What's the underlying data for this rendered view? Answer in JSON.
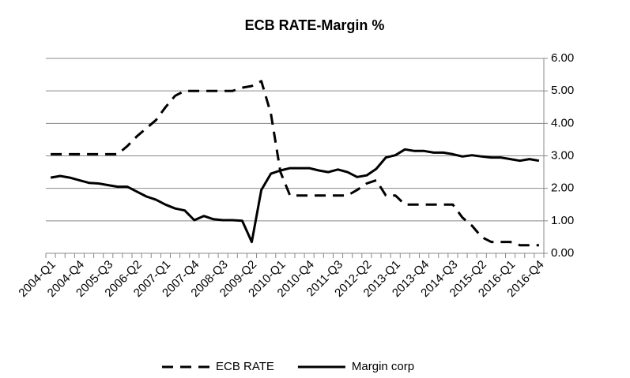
{
  "chart_data": {
    "type": "line",
    "title": "ECB RATE-Margin %",
    "categories": [
      "2004-Q1",
      null,
      null,
      "2004-Q4",
      null,
      null,
      "2005-Q3",
      null,
      null,
      "2006-Q2",
      null,
      null,
      "2007-Q1",
      null,
      null,
      "2007-Q4",
      null,
      null,
      "2008-Q3",
      null,
      null,
      "2009-Q2",
      null,
      null,
      "2010-Q1",
      null,
      null,
      "2010-Q4",
      null,
      null,
      "2011-Q3",
      null,
      null,
      "2012-Q2",
      null,
      null,
      "2013-Q1",
      null,
      null,
      "2013-Q4",
      null,
      null,
      "2014-Q3",
      null,
      null,
      "2015-Q2",
      null,
      null,
      "2016-Q1",
      null,
      null,
      "2016-Q4"
    ],
    "series": [
      {
        "name": "ECB RATE",
        "color": "#000000",
        "dashed": true,
        "values": [
          3.05,
          3.05,
          3.05,
          3.05,
          3.05,
          3.05,
          3.05,
          3.05,
          3.3,
          3.6,
          3.85,
          4.1,
          4.5,
          4.85,
          5.0,
          5.0,
          5.0,
          5.0,
          5.0,
          5.0,
          5.1,
          5.15,
          5.3,
          4.3,
          2.5,
          1.78,
          1.78,
          1.78,
          1.78,
          1.78,
          1.78,
          1.78,
          1.95,
          2.15,
          2.25,
          1.78,
          1.78,
          1.5,
          1.5,
          1.5,
          1.5,
          1.5,
          1.5,
          1.1,
          0.85,
          0.5,
          0.35,
          0.35,
          0.35,
          0.25,
          0.25,
          0.25
        ]
      },
      {
        "name": "Margin corp",
        "color": "#000000",
        "dashed": false,
        "values": [
          2.33,
          2.38,
          2.33,
          2.25,
          2.17,
          2.15,
          2.1,
          2.05,
          2.05,
          1.9,
          1.75,
          1.65,
          1.5,
          1.38,
          1.32,
          1.02,
          1.15,
          1.05,
          1.02,
          1.02,
          1.0,
          0.35,
          1.95,
          2.45,
          2.55,
          2.62,
          2.62,
          2.62,
          2.55,
          2.5,
          2.58,
          2.5,
          2.35,
          2.4,
          2.6,
          2.95,
          3.02,
          3.2,
          3.15,
          3.15,
          3.1,
          3.1,
          3.05,
          2.98,
          3.02,
          2.98,
          2.95,
          2.95,
          2.9,
          2.85,
          2.9,
          2.85
        ]
      }
    ],
    "ylim": [
      0,
      6
    ],
    "yticks": [
      {
        "value": 0,
        "label": "0.00"
      },
      {
        "value": 1,
        "label": "1.00"
      },
      {
        "value": 2,
        "label": "2.00"
      },
      {
        "value": 3,
        "label": "3.00"
      },
      {
        "value": 4,
        "label": "4.00"
      },
      {
        "value": 5,
        "label": "5.00"
      },
      {
        "value": 6,
        "label": "6.00"
      }
    ],
    "y_axis_side": "right",
    "grid": true,
    "legend": "bottom"
  }
}
